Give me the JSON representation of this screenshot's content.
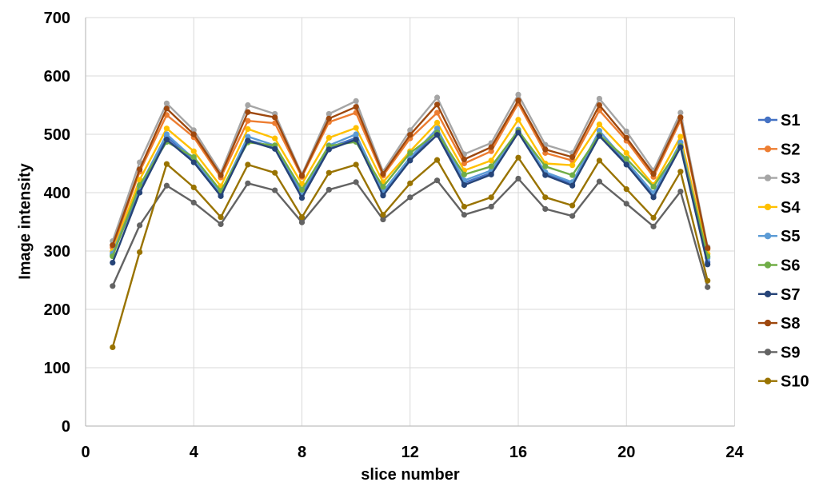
{
  "chart_data": {
    "type": "line",
    "title": "",
    "xlabel": "slice number",
    "ylabel": "Image intensity",
    "xlim": [
      0,
      24
    ],
    "ylim": [
      0,
      700
    ],
    "x_ticks": [
      0,
      4,
      8,
      12,
      16,
      20,
      24
    ],
    "y_ticks": [
      0,
      100,
      200,
      300,
      400,
      500,
      600,
      700
    ],
    "grid": true,
    "legend_position": "right",
    "marker": "circle",
    "x": [
      1,
      2,
      3,
      4,
      5,
      6,
      7,
      8,
      9,
      10,
      11,
      12,
      13,
      14,
      15,
      16,
      17,
      18,
      19,
      20,
      21,
      22,
      23
    ],
    "series": [
      {
        "name": "S1",
        "color": "#4472C4",
        "values": [
          293,
          406,
          496,
          455,
          397,
          490,
          478,
          397,
          477,
          494,
          398,
          457,
          505,
          417,
          434,
          505,
          432,
          415,
          500,
          450,
          396,
          482,
          281
        ]
      },
      {
        "name": "S2",
        "color": "#ED7D31",
        "values": [
          306,
          436,
          533,
          495,
          426,
          523,
          519,
          427,
          521,
          537,
          429,
          493,
          537,
          450,
          471,
          553,
          468,
          455,
          541,
          489,
          427,
          524,
          303
        ]
      },
      {
        "name": "S3",
        "color": "#A5A5A5",
        "values": [
          317,
          452,
          553,
          507,
          434,
          550,
          535,
          431,
          535,
          557,
          436,
          507,
          563,
          466,
          485,
          568,
          482,
          468,
          561,
          505,
          438,
          537,
          307
        ]
      },
      {
        "name": "S4",
        "color": "#FFC000",
        "values": [
          299,
          422,
          510,
          471,
          411,
          509,
          493,
          415,
          494,
          511,
          418,
          471,
          520,
          438,
          455,
          525,
          450,
          447,
          517,
          468,
          413,
          496,
          295
        ]
      },
      {
        "name": "S5",
        "color": "#5B9BD5",
        "values": [
          296,
          410,
          500,
          458,
          400,
          496,
          481,
          401,
          481,
          500,
          402,
          460,
          510,
          421,
          438,
          508,
          435,
          418,
          506,
          453,
          399,
          486,
          288
        ]
      },
      {
        "name": "S6",
        "color": "#70AD47",
        "values": [
          291,
          413,
          487,
          461,
          403,
          486,
          481,
          405,
          480,
          487,
          410,
          468,
          503,
          431,
          445,
          506,
          445,
          430,
          499,
          458,
          410,
          480,
          291
        ]
      },
      {
        "name": "S7",
        "color": "#264478",
        "values": [
          280,
          400,
          491,
          452,
          394,
          489,
          475,
          391,
          474,
          491,
          395,
          455,
          499,
          413,
          431,
          503,
          430,
          412,
          497,
          448,
          392,
          478,
          277
        ]
      },
      {
        "name": "S8",
        "color": "#9E480E",
        "values": [
          310,
          440,
          544,
          500,
          430,
          538,
          529,
          429,
          527,
          547,
          432,
          499,
          551,
          457,
          478,
          558,
          474,
          461,
          550,
          494,
          432,
          529,
          305
        ]
      },
      {
        "name": "S9",
        "color": "#636363",
        "values": [
          240,
          344,
          412,
          383,
          346,
          416,
          404,
          349,
          405,
          418,
          354,
          392,
          421,
          362,
          376,
          424,
          372,
          360,
          419,
          381,
          342,
          402,
          238
        ]
      },
      {
        "name": "S10",
        "color": "#997300",
        "values": [
          135,
          298,
          449,
          409,
          358,
          448,
          434,
          358,
          434,
          448,
          362,
          416,
          456,
          376,
          392,
          460,
          392,
          378,
          455,
          406,
          357,
          436,
          249
        ]
      }
    ]
  },
  "style": {
    "gridline_color": "#D9D9D9",
    "axis_color": "#BFBFBF",
    "text_color": "#000000",
    "background": "#FFFFFF"
  }
}
